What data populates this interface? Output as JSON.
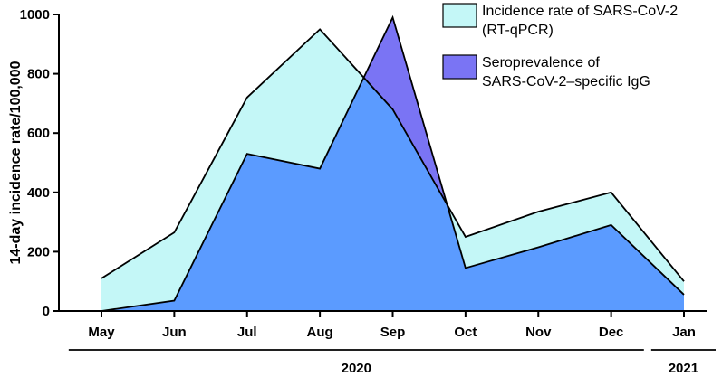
{
  "chart_data": {
    "type": "area",
    "categories": [
      "May",
      "Jun",
      "Jul",
      "Aug",
      "Sep",
      "Oct",
      "Nov",
      "Dec",
      "Jan"
    ],
    "year_groups": [
      {
        "label": "2020",
        "from": "May",
        "to": "Dec"
      },
      {
        "label": "2021",
        "from": "Jan",
        "to": "Jan"
      }
    ],
    "ylabel": "14-day incidence rate/100,000",
    "xlabel": "",
    "ylim": [
      0,
      1000
    ],
    "yticks": [
      0,
      200,
      400,
      600,
      800,
      1000
    ],
    "legend_position": "top-right",
    "series": [
      {
        "name": "Incidence rate of SARS-CoV-2 (RT-qPCR)",
        "legend_lines": [
          "Incidence rate of SARS-CoV-2",
          "(RT-qPCR)"
        ],
        "color": "#c4f7f7",
        "values": [
          110,
          265,
          720,
          950,
          680,
          250,
          335,
          400,
          100
        ]
      },
      {
        "name": "Seroprevalence of SARS-CoV-2–specific IgG",
        "legend_lines": [
          "Seroprevalence of",
          "SARS-CoV-2–specific IgG"
        ],
        "color": "#7a74f4",
        "values": [
          0,
          35,
          530,
          480,
          990,
          145,
          215,
          290,
          55
        ]
      }
    ],
    "overlap_color": "#5b9bff"
  }
}
